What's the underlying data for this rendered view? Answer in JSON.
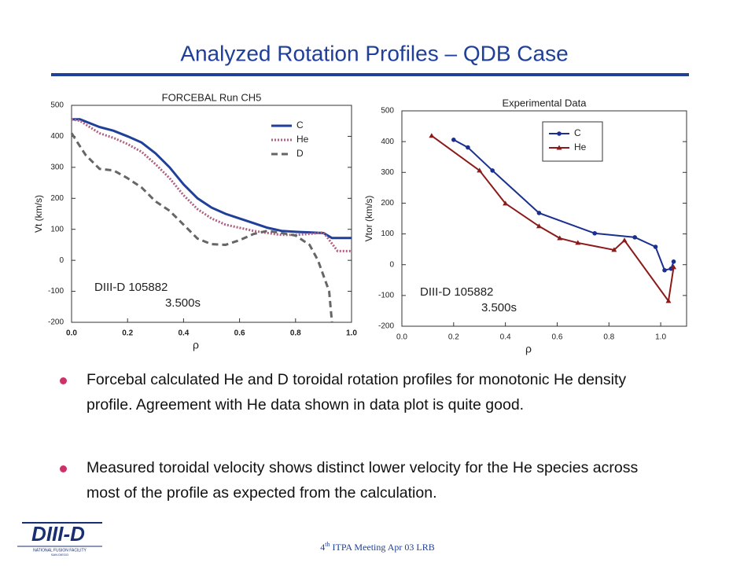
{
  "title": "Analyzed Rotation Profiles – QDB  Case",
  "bullets": [
    "Forcebal calculated He and D toroidal rotation profiles for monotonic He density profile.  Agreement with He data shown in data plot is quite good.",
    "Measured toroidal velocity shows distinct lower velocity for the He species across most of the profile as expected from the calculation."
  ],
  "footer": {
    "number": "4",
    "suffix": "th",
    "text": "ITPA Meeting  Apr 03  LRB"
  },
  "logo": {
    "name": "DIII-D",
    "line1": "NATIONAL FUSION FACILITY",
    "line2": "SAN DIEGO"
  },
  "chart_data": [
    {
      "type": "line",
      "title": "FORCEBAL  Run CH5",
      "x_label": "ρ",
      "y_label": "Vt (km/s)",
      "annotations": [
        "DIII-D  105882",
        "3.500s"
      ],
      "xlim": [
        0,
        1
      ],
      "xticks": [
        {
          "value": 0,
          "label": "0.0"
        },
        {
          "value": 0.2,
          "label": "0.2"
        },
        {
          "value": 0.4,
          "label": "0.4"
        },
        {
          "value": 0.6,
          "label": "0.6"
        },
        {
          "value": 0.8,
          "label": "0.8"
        },
        {
          "value": 1,
          "label": "1.0"
        }
      ],
      "ylim": [
        -200,
        500
      ],
      "yticks": [
        -200,
        -100,
        0,
        100,
        200,
        300,
        400,
        500
      ],
      "legend": "top-right",
      "series": [
        {
          "name": "C",
          "color": "#1f3f99",
          "style": "solid",
          "x": [
            0,
            0.03,
            0.1,
            0.15,
            0.2,
            0.25,
            0.3,
            0.35,
            0.4,
            0.45,
            0.5,
            0.55,
            0.6,
            0.65,
            0.7,
            0.75,
            0.8,
            0.85,
            0.9,
            0.93,
            1.0
          ],
          "values": [
            455,
            455,
            430,
            418,
            400,
            380,
            345,
            300,
            245,
            200,
            170,
            150,
            135,
            120,
            105,
            95,
            92,
            90,
            88,
            72,
            72
          ]
        },
        {
          "name": "He",
          "color": "#b06080",
          "style": "dotted",
          "x": [
            0,
            0.03,
            0.1,
            0.15,
            0.2,
            0.25,
            0.3,
            0.35,
            0.4,
            0.45,
            0.5,
            0.55,
            0.6,
            0.65,
            0.7,
            0.75,
            0.8,
            0.85,
            0.9,
            0.95,
            1.0
          ],
          "values": [
            455,
            450,
            410,
            395,
            375,
            350,
            310,
            265,
            210,
            165,
            135,
            115,
            105,
            95,
            88,
            82,
            82,
            85,
            90,
            30,
            30
          ]
        },
        {
          "name": "D",
          "color": "#666666",
          "style": "dashed",
          "x": [
            0,
            0.05,
            0.1,
            0.15,
            0.2,
            0.25,
            0.3,
            0.35,
            0.4,
            0.45,
            0.5,
            0.55,
            0.6,
            0.65,
            0.7,
            0.75,
            0.8,
            0.85,
            0.88,
            0.92,
            0.93
          ],
          "values": [
            410,
            340,
            295,
            290,
            265,
            235,
            190,
            160,
            115,
            70,
            52,
            50,
            65,
            85,
            95,
            88,
            80,
            50,
            0,
            -100,
            -200
          ]
        }
      ]
    },
    {
      "type": "line",
      "title": "Experimental Data",
      "x_label": "ρ",
      "y_label": "Vtor (km/s)",
      "annotations": [
        "DIII-D  105882",
        "3.500s"
      ],
      "xlim": [
        0,
        1.1
      ],
      "xticks": [
        {
          "value": 0,
          "label": "0.0"
        },
        {
          "value": 0.2,
          "label": "0.2"
        },
        {
          "value": 0.4,
          "label": "0.4"
        },
        {
          "value": 0.6,
          "label": "0.6"
        },
        {
          "value": 0.8,
          "label": "0.8"
        },
        {
          "value": 1,
          "label": "1.0"
        }
      ],
      "ylim": [
        -200,
        500
      ],
      "yticks": [
        -200,
        -100,
        0,
        100,
        200,
        300,
        400,
        500
      ],
      "legend": "top-center",
      "series": [
        {
          "name": "C",
          "color": "#1a2f8f",
          "style": "solid",
          "marker": "circle",
          "x": [
            0.2,
            0.255,
            0.35,
            0.53,
            0.745,
            0.9,
            0.98,
            1.015,
            1.04,
            1.05
          ],
          "values": [
            406,
            381,
            306,
            168,
            102,
            89,
            58,
            -18,
            -13,
            10
          ]
        },
        {
          "name": "He",
          "color": "#8b1a1a",
          "style": "solid",
          "marker": "triangle",
          "x": [
            0.115,
            0.3,
            0.4,
            0.53,
            0.61,
            0.68,
            0.82,
            0.86,
            1.03,
            1.05
          ],
          "values": [
            419,
            306,
            199,
            125,
            86,
            71,
            48,
            79,
            -118,
            -8
          ]
        }
      ]
    }
  ]
}
